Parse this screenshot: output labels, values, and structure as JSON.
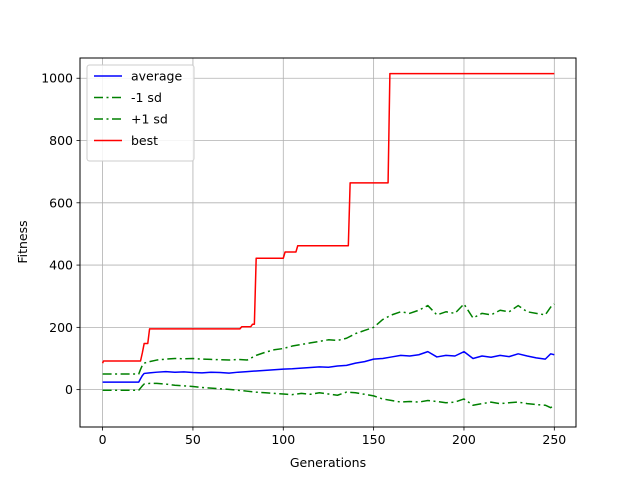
{
  "chart_data": {
    "type": "line",
    "xlabel": "Generations",
    "ylabel": "Fitness",
    "xlim": [
      -12.5,
      262
    ],
    "ylim": [
      -120,
      1065
    ],
    "xticks": [
      0,
      50,
      100,
      150,
      200,
      250
    ],
    "yticks": [
      0,
      200,
      400,
      600,
      800,
      1000
    ],
    "grid": true,
    "legend_position": "upper-left",
    "series": [
      {
        "name": "average",
        "color": "#0000ff",
        "style": "solid",
        "points": [
          [
            0,
            24
          ],
          [
            20,
            24
          ],
          [
            21,
            35
          ],
          [
            22,
            45
          ],
          [
            23,
            52
          ],
          [
            26,
            54
          ],
          [
            30,
            56
          ],
          [
            35,
            58
          ],
          [
            40,
            56
          ],
          [
            45,
            57
          ],
          [
            50,
            55
          ],
          [
            55,
            54
          ],
          [
            60,
            56
          ],
          [
            65,
            55
          ],
          [
            70,
            53
          ],
          [
            75,
            56
          ],
          [
            80,
            58
          ],
          [
            85,
            60
          ],
          [
            90,
            62
          ],
          [
            95,
            64
          ],
          [
            100,
            66
          ],
          [
            105,
            67
          ],
          [
            110,
            69
          ],
          [
            115,
            71
          ],
          [
            120,
            73
          ],
          [
            125,
            72
          ],
          [
            130,
            76
          ],
          [
            135,
            78
          ],
          [
            140,
            85
          ],
          [
            145,
            90
          ],
          [
            150,
            98
          ],
          [
            155,
            100
          ],
          [
            160,
            105
          ],
          [
            165,
            110
          ],
          [
            170,
            108
          ],
          [
            175,
            112
          ],
          [
            180,
            122
          ],
          [
            185,
            105
          ],
          [
            190,
            110
          ],
          [
            195,
            108
          ],
          [
            200,
            122
          ],
          [
            205,
            100
          ],
          [
            210,
            108
          ],
          [
            215,
            104
          ],
          [
            220,
            110
          ],
          [
            225,
            106
          ],
          [
            230,
            115
          ],
          [
            235,
            108
          ],
          [
            240,
            102
          ],
          [
            245,
            98
          ],
          [
            248,
            115
          ],
          [
            250,
            112
          ]
        ]
      },
      {
        "name": "-1 sd",
        "color": "#008000",
        "style": "dashdot",
        "points": [
          [
            0,
            -2
          ],
          [
            20,
            -2
          ],
          [
            21,
            5
          ],
          [
            22,
            12
          ],
          [
            23,
            18
          ],
          [
            26,
            20
          ],
          [
            30,
            20
          ],
          [
            35,
            18
          ],
          [
            40,
            14
          ],
          [
            45,
            12
          ],
          [
            50,
            10
          ],
          [
            55,
            7
          ],
          [
            60,
            5
          ],
          [
            65,
            3
          ],
          [
            70,
            1
          ],
          [
            75,
            -2
          ],
          [
            80,
            -5
          ],
          [
            85,
            -8
          ],
          [
            90,
            -10
          ],
          [
            95,
            -12
          ],
          [
            100,
            -14
          ],
          [
            105,
            -16
          ],
          [
            110,
            -12
          ],
          [
            115,
            -15
          ],
          [
            120,
            -10
          ],
          [
            125,
            -14
          ],
          [
            130,
            -18
          ],
          [
            135,
            -8
          ],
          [
            140,
            -10
          ],
          [
            145,
            -15
          ],
          [
            150,
            -20
          ],
          [
            155,
            -30
          ],
          [
            160,
            -35
          ],
          [
            165,
            -40
          ],
          [
            170,
            -38
          ],
          [
            175,
            -40
          ],
          [
            180,
            -35
          ],
          [
            185,
            -38
          ],
          [
            190,
            -42
          ],
          [
            195,
            -40
          ],
          [
            200,
            -30
          ],
          [
            205,
            -50
          ],
          [
            210,
            -45
          ],
          [
            215,
            -40
          ],
          [
            220,
            -45
          ],
          [
            225,
            -42
          ],
          [
            230,
            -40
          ],
          [
            235,
            -45
          ],
          [
            240,
            -48
          ],
          [
            245,
            -50
          ],
          [
            248,
            -58
          ],
          [
            250,
            -50
          ]
        ]
      },
      {
        "name": "+1 sd",
        "color": "#008000",
        "style": "dashdot",
        "points": [
          [
            0,
            50
          ],
          [
            20,
            50
          ],
          [
            21,
            65
          ],
          [
            22,
            78
          ],
          [
            23,
            85
          ],
          [
            26,
            90
          ],
          [
            30,
            95
          ],
          [
            35,
            98
          ],
          [
            40,
            100
          ],
          [
            45,
            99
          ],
          [
            50,
            100
          ],
          [
            55,
            98
          ],
          [
            60,
            97
          ],
          [
            65,
            96
          ],
          [
            70,
            95
          ],
          [
            75,
            97
          ],
          [
            80,
            95
          ],
          [
            85,
            110
          ],
          [
            90,
            120
          ],
          [
            95,
            128
          ],
          [
            100,
            132
          ],
          [
            105,
            140
          ],
          [
            110,
            145
          ],
          [
            115,
            150
          ],
          [
            120,
            155
          ],
          [
            125,
            160
          ],
          [
            130,
            158
          ],
          [
            135,
            165
          ],
          [
            140,
            180
          ],
          [
            145,
            190
          ],
          [
            150,
            200
          ],
          [
            155,
            225
          ],
          [
            160,
            240
          ],
          [
            165,
            250
          ],
          [
            170,
            245
          ],
          [
            175,
            255
          ],
          [
            180,
            270
          ],
          [
            185,
            240
          ],
          [
            190,
            250
          ],
          [
            195,
            245
          ],
          [
            200,
            275
          ],
          [
            205,
            230
          ],
          [
            210,
            245
          ],
          [
            215,
            240
          ],
          [
            220,
            255
          ],
          [
            225,
            250
          ],
          [
            230,
            270
          ],
          [
            235,
            250
          ],
          [
            240,
            245
          ],
          [
            245,
            240
          ],
          [
            248,
            265
          ],
          [
            250,
            275
          ]
        ]
      },
      {
        "name": "best",
        "color": "#ff0000",
        "style": "solid",
        "points": [
          [
            0,
            85
          ],
          [
            0.5,
            92
          ],
          [
            21,
            92
          ],
          [
            22,
            118
          ],
          [
            23,
            148
          ],
          [
            25,
            148
          ],
          [
            26,
            195
          ],
          [
            76,
            195
          ],
          [
            77,
            202
          ],
          [
            82,
            202
          ],
          [
            83,
            210
          ],
          [
            84,
            210
          ],
          [
            85,
            422
          ],
          [
            100,
            422
          ],
          [
            101,
            442
          ],
          [
            107,
            442
          ],
          [
            108,
            462
          ],
          [
            136,
            462
          ],
          [
            137,
            664
          ],
          [
            158,
            664
          ],
          [
            159,
            1015
          ],
          [
            250,
            1015
          ]
        ]
      }
    ]
  }
}
